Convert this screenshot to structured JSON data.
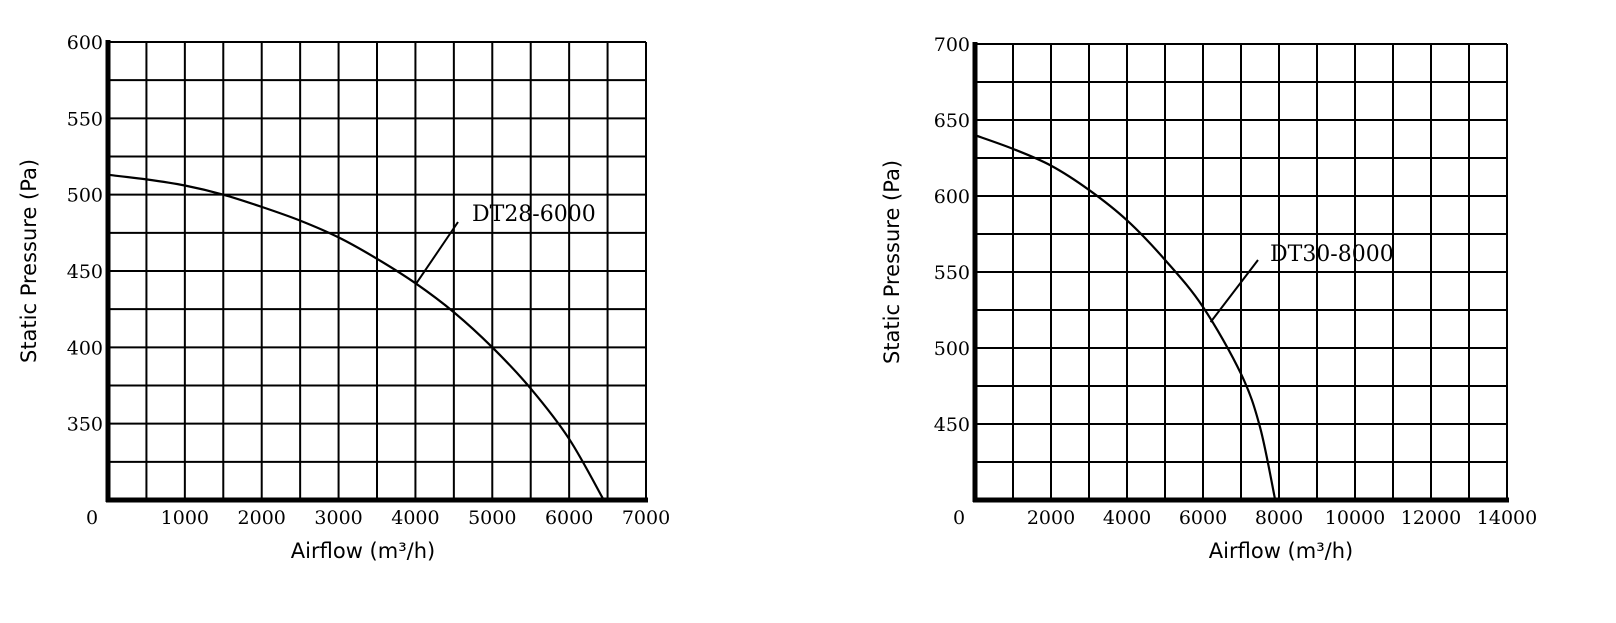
{
  "chart_data": [
    {
      "type": "line",
      "xlabel": "Airflow (m³/h)",
      "ylabel": "Static Pressure (Pa)",
      "xlim": [
        0,
        7000
      ],
      "ylim": [
        300,
        600
      ],
      "x_ticks": [
        0,
        1000,
        2000,
        3000,
        4000,
        5000,
        6000,
        7000
      ],
      "y_ticks": [
        350,
        400,
        450,
        500,
        550,
        600
      ],
      "grid": true,
      "grid_x_step": 500,
      "grid_y_step": 25,
      "series": [
        {
          "name": "DT28-6000",
          "x": [
            0,
            500,
            1000,
            1500,
            2000,
            2500,
            3000,
            3500,
            4000,
            4500,
            5000,
            5500,
            6000,
            6450
          ],
          "y": [
            513,
            510,
            506,
            500,
            492,
            483,
            472,
            458,
            442,
            423,
            400,
            373,
            340,
            300
          ]
        }
      ],
      "annotation": {
        "text": "DT28-6000",
        "x": 4000,
        "y": 441
      }
    },
    {
      "type": "line",
      "xlabel": "Airflow (m³/h)",
      "ylabel": "Static Pressure (Pa)",
      "xlim": [
        0,
        14000
      ],
      "ylim": [
        400,
        700
      ],
      "x_ticks": [
        0,
        2000,
        4000,
        6000,
        8000,
        10000,
        12000,
        14000
      ],
      "y_ticks": [
        450,
        500,
        550,
        600,
        650,
        700
      ],
      "grid": true,
      "grid_x_step": 1000,
      "grid_y_step": 25,
      "series": [
        {
          "name": "DT30-8000",
          "x": [
            0,
            1000,
            2000,
            3000,
            4000,
            5000,
            6000,
            7000,
            7500,
            7900
          ],
          "y": [
            640,
            631,
            620,
            604,
            584,
            558,
            527,
            483,
            448,
            400
          ]
        }
      ],
      "annotation": {
        "text": "DT30-8000",
        "x": 6200,
        "y": 517
      }
    }
  ]
}
